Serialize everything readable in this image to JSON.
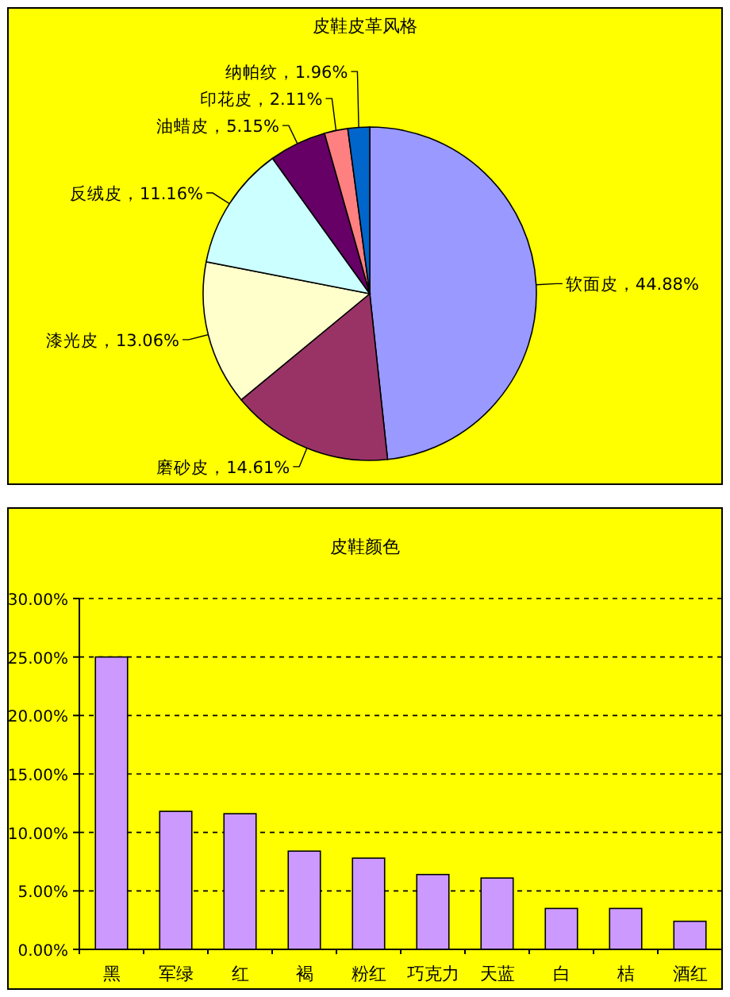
{
  "chart_data": [
    {
      "type": "pie",
      "title": "皮鞋皮革风格",
      "categories": [
        "软面皮",
        "磨砂皮",
        "漆光皮",
        "反绒皮",
        "油蜡皮",
        "印花皮",
        "纳帕纹"
      ],
      "values": [
        44.88,
        14.61,
        13.06,
        11.16,
        5.15,
        2.11,
        1.96
      ],
      "colors": [
        "#9999ff",
        "#993366",
        "#ffffcc",
        "#ccffff",
        "#660066",
        "#ff8080",
        "#0066cc"
      ],
      "value_labels": [
        "，44.88%",
        "，14.61%",
        "，13.06%",
        "，11.16%",
        "，5.15%",
        "，2.11%",
        "，1.96%"
      ]
    },
    {
      "type": "bar",
      "title": "皮鞋颜色",
      "categories": [
        "黑",
        "军绿",
        "红",
        "褐",
        "粉红",
        "巧克力",
        "天蓝",
        "白",
        "桔",
        "酒红"
      ],
      "values": [
        25.0,
        11.8,
        11.6,
        8.4,
        7.8,
        6.4,
        6.1,
        3.5,
        3.5,
        2.4
      ],
      "color": "#cc99ff",
      "ylim": [
        0,
        30
      ],
      "yticks": [
        {
          "value": 0,
          "label": "0.00%"
        },
        {
          "value": 5,
          "label": "5.00%"
        },
        {
          "value": 10,
          "label": "10.00%"
        },
        {
          "value": 15,
          "label": "15.00%"
        },
        {
          "value": 20,
          "label": "20.00%"
        },
        {
          "value": 25,
          "label": "25.00%"
        },
        {
          "value": 30,
          "label": "30.00%"
        }
      ],
      "grid": "y"
    }
  ]
}
